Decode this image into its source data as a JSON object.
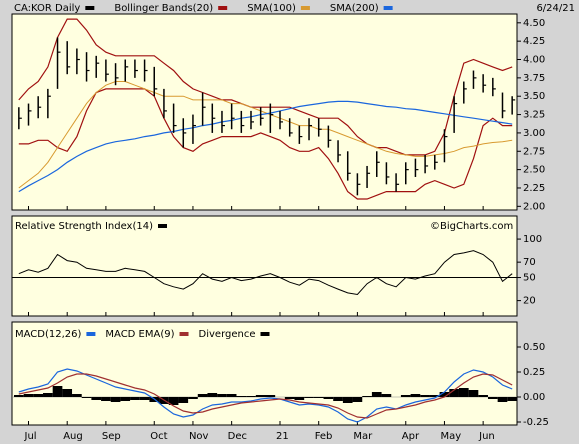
{
  "chart_data": [
    {
      "type": "ohlc",
      "date": "6/24/21",
      "ylim": [
        1.95,
        4.62
      ],
      "yticks": [
        {
          "value": 2,
          "label": "2.00"
        },
        {
          "value": 2.25,
          "label": "2.25"
        },
        {
          "value": 2.5,
          "label": "2.50"
        },
        {
          "value": 2.75,
          "label": "2.75"
        },
        {
          "value": 3,
          "label": "3.00"
        },
        {
          "value": 3.25,
          "label": "3.25"
        },
        {
          "value": 3.5,
          "label": "3.50"
        },
        {
          "value": 3.75,
          "label": "3.75"
        },
        {
          "value": 4,
          "label": "4.00"
        },
        {
          "value": 4.25,
          "label": "4.25"
        },
        {
          "value": 4.5,
          "label": "4.50"
        }
      ],
      "series": [
        {
          "name": "CA:KOR Daily",
          "color": "#000000",
          "high": [
            3.35,
            3.4,
            3.5,
            3.6,
            4.3,
            4.25,
            4.15,
            4.1,
            4.05,
            4.0,
            3.95,
            4.0,
            4.0,
            4.0,
            3.9,
            3.6,
            3.4,
            3.2,
            3.25,
            3.55,
            3.4,
            3.3,
            3.4,
            3.3,
            3.3,
            3.35,
            3.4,
            3.3,
            3.2,
            3.1,
            3.2,
            3.2,
            3.1,
            2.9,
            2.75,
            2.45,
            2.55,
            2.75,
            2.6,
            2.45,
            2.6,
            2.65,
            2.7,
            2.7,
            3.05,
            3.5,
            3.7,
            3.85,
            3.8,
            3.75,
            3.55,
            3.5
          ],
          "low": [
            3.05,
            3.1,
            3.2,
            3.2,
            3.6,
            3.8,
            3.8,
            3.7,
            3.75,
            3.7,
            3.65,
            3.7,
            3.75,
            3.7,
            3.5,
            3.2,
            3.0,
            2.8,
            2.85,
            3.1,
            3.0,
            3.0,
            3.05,
            3.0,
            3.05,
            3.1,
            3.0,
            3.05,
            2.95,
            2.85,
            2.9,
            2.95,
            2.8,
            2.6,
            2.35,
            2.15,
            2.25,
            2.4,
            2.3,
            2.2,
            2.3,
            2.4,
            2.45,
            2.5,
            2.6,
            3.0,
            3.4,
            3.6,
            3.55,
            3.5,
            3.2,
            3.25
          ],
          "close": [
            3.2,
            3.3,
            3.35,
            3.5,
            4.1,
            3.9,
            4.0,
            3.85,
            3.95,
            3.8,
            3.75,
            3.9,
            3.85,
            3.85,
            3.6,
            3.3,
            3.1,
            3.0,
            3.1,
            3.35,
            3.2,
            3.1,
            3.2,
            3.1,
            3.15,
            3.2,
            3.25,
            3.15,
            3.0,
            2.95,
            3.1,
            3.05,
            2.9,
            2.7,
            2.45,
            2.3,
            2.45,
            2.6,
            2.4,
            2.3,
            2.5,
            2.5,
            2.55,
            2.6,
            2.95,
            3.4,
            3.6,
            3.75,
            3.65,
            3.6,
            3.3,
            3.45
          ]
        },
        {
          "name": "Bollinger Bands(20)",
          "color": "#a01010",
          "upper": [
            3.45,
            3.6,
            3.7,
            3.9,
            4.3,
            4.55,
            4.55,
            4.4,
            4.2,
            4.1,
            4.05,
            4.05,
            4.05,
            4.05,
            4.05,
            3.95,
            3.85,
            3.7,
            3.6,
            3.55,
            3.5,
            3.45,
            3.45,
            3.4,
            3.35,
            3.35,
            3.35,
            3.35,
            3.35,
            3.3,
            3.25,
            3.2,
            3.2,
            3.2,
            3.1,
            2.95,
            2.85,
            2.8,
            2.8,
            2.75,
            2.7,
            2.7,
            2.7,
            2.75,
            3.0,
            3.5,
            3.95,
            4.0,
            3.95,
            3.9,
            3.85,
            3.9
          ],
          "lower": [
            2.85,
            2.85,
            2.9,
            2.9,
            2.8,
            2.75,
            2.95,
            3.3,
            3.55,
            3.6,
            3.6,
            3.6,
            3.6,
            3.6,
            3.5,
            3.2,
            2.95,
            2.8,
            2.75,
            2.85,
            2.9,
            2.95,
            2.95,
            2.95,
            2.95,
            3.0,
            2.95,
            2.9,
            2.8,
            2.75,
            2.75,
            2.8,
            2.65,
            2.45,
            2.2,
            2.1,
            2.1,
            2.15,
            2.2,
            2.2,
            2.2,
            2.2,
            2.3,
            2.35,
            2.3,
            2.25,
            2.3,
            2.65,
            3.1,
            3.2,
            3.1,
            3.1
          ]
        },
        {
          "name": "SMA(100)",
          "color": "#d89a30",
          "values": [
            2.25,
            2.35,
            2.45,
            2.6,
            2.8,
            3.0,
            3.2,
            3.4,
            3.55,
            3.65,
            3.7,
            3.7,
            3.65,
            3.6,
            3.55,
            3.5,
            3.5,
            3.5,
            3.45,
            3.45,
            3.45,
            3.45,
            3.4,
            3.4,
            3.35,
            3.3,
            3.25,
            3.2,
            3.15,
            3.1,
            3.1,
            3.05,
            3.05,
            3.0,
            2.95,
            2.9,
            2.85,
            2.8,
            2.75,
            2.72,
            2.7,
            2.68,
            2.68,
            2.7,
            2.72,
            2.75,
            2.8,
            2.82,
            2.85,
            2.87,
            2.88,
            2.9
          ]
        },
        {
          "name": "SMA(200)",
          "color": "#1a66dd",
          "values": [
            2.2,
            2.28,
            2.35,
            2.42,
            2.5,
            2.6,
            2.68,
            2.75,
            2.8,
            2.85,
            2.88,
            2.9,
            2.92,
            2.95,
            2.97,
            3.0,
            3.02,
            3.05,
            3.07,
            3.1,
            3.12,
            3.15,
            3.17,
            3.2,
            3.22,
            3.25,
            3.27,
            3.3,
            3.33,
            3.36,
            3.38,
            3.4,
            3.42,
            3.43,
            3.43,
            3.42,
            3.4,
            3.38,
            3.36,
            3.35,
            3.33,
            3.32,
            3.3,
            3.28,
            3.26,
            3.24,
            3.22,
            3.2,
            3.18,
            3.16,
            3.14,
            3.12
          ]
        }
      ]
    },
    {
      "type": "line",
      "annotation": "©BigCharts.com",
      "reference": 50,
      "ylim": [
        0,
        130
      ],
      "yticks": [
        20,
        50,
        70,
        100
      ],
      "series": [
        {
          "name": "Relative Strength Index(14)",
          "color": "#000000",
          "values": [
            55,
            60,
            57,
            62,
            80,
            72,
            70,
            62,
            60,
            58,
            58,
            62,
            60,
            58,
            50,
            42,
            38,
            35,
            42,
            55,
            48,
            45,
            50,
            46,
            48,
            52,
            55,
            50,
            44,
            40,
            48,
            46,
            40,
            35,
            30,
            28,
            42,
            50,
            42,
            38,
            50,
            48,
            52,
            55,
            70,
            80,
            82,
            85,
            80,
            70,
            45,
            55
          ]
        }
      ]
    },
    {
      "type": "macd",
      "ylim": [
        -0.28,
        0.75
      ],
      "yticks": [
        {
          "value": -0.25,
          "label": "-0.25"
        },
        {
          "value": 0,
          "label": "0.00"
        },
        {
          "value": 0.25,
          "label": "0.25"
        },
        {
          "value": 0.5,
          "label": "0.50"
        }
      ],
      "categories": [
        null,
        "Jul",
        null,
        null,
        null,
        "Aug",
        null,
        null,
        null,
        "Sep",
        null,
        null,
        null,
        null,
        "Oct",
        null,
        null,
        null,
        "Nov",
        null,
        null,
        null,
        "Dec",
        null,
        null,
        null,
        null,
        "21",
        null,
        null,
        null,
        "Feb",
        null,
        null,
        null,
        "Mar",
        null,
        null,
        null,
        null,
        "Apr",
        null,
        null,
        null,
        "May",
        null,
        null,
        null,
        "Jun",
        null,
        null,
        null
      ],
      "series": [
        {
          "name": "MACD(12,26)",
          "color": "#1a66dd",
          "values": [
            0.05,
            0.08,
            0.1,
            0.13,
            0.25,
            0.28,
            0.26,
            0.22,
            0.18,
            0.14,
            0.1,
            0.08,
            0.06,
            0.04,
            -0.02,
            -0.1,
            -0.17,
            -0.2,
            -0.18,
            -0.12,
            -0.08,
            -0.07,
            -0.05,
            -0.05,
            -0.04,
            -0.02,
            -0.01,
            -0.02,
            -0.05,
            -0.08,
            -0.07,
            -0.08,
            -0.1,
            -0.15,
            -0.22,
            -0.25,
            -0.2,
            -0.12,
            -0.1,
            -0.12,
            -0.08,
            -0.05,
            -0.03,
            -0.01,
            0.05,
            0.15,
            0.23,
            0.27,
            0.25,
            0.2,
            0.12,
            0.08
          ]
        },
        {
          "name": "MACD EMA(9)",
          "color": "#a03030",
          "values": [
            0.03,
            0.05,
            0.07,
            0.09,
            0.14,
            0.2,
            0.23,
            0.23,
            0.21,
            0.18,
            0.15,
            0.12,
            0.09,
            0.07,
            0.03,
            -0.03,
            -0.09,
            -0.14,
            -0.16,
            -0.15,
            -0.12,
            -0.1,
            -0.08,
            -0.06,
            -0.05,
            -0.04,
            -0.03,
            -0.02,
            -0.03,
            -0.05,
            -0.06,
            -0.07,
            -0.08,
            -0.11,
            -0.16,
            -0.2,
            -0.21,
            -0.17,
            -0.13,
            -0.12,
            -0.1,
            -0.08,
            -0.05,
            -0.03,
            0.0,
            0.07,
            0.14,
            0.2,
            0.23,
            0.22,
            0.17,
            0.12
          ]
        },
        {
          "name": "Divergence",
          "color": "#000000",
          "values": [
            0.02,
            0.03,
            0.03,
            0.04,
            0.11,
            0.08,
            0.03,
            -0.01,
            -0.03,
            -0.04,
            -0.05,
            -0.04,
            -0.03,
            -0.03,
            -0.05,
            -0.07,
            -0.08,
            -0.06,
            -0.02,
            0.03,
            0.04,
            0.03,
            0.03,
            0.01,
            0.01,
            0.02,
            0.02,
            0,
            -0.02,
            -0.03,
            -0.01,
            -0.01,
            -0.02,
            -0.04,
            -0.06,
            -0.05,
            0.01,
            0.05,
            0.03,
            0,
            0.02,
            0.03,
            0.02,
            0.02,
            0.05,
            0.08,
            0.09,
            0.07,
            0.02,
            -0.02,
            -0.05,
            -0.04
          ]
        }
      ]
    }
  ]
}
